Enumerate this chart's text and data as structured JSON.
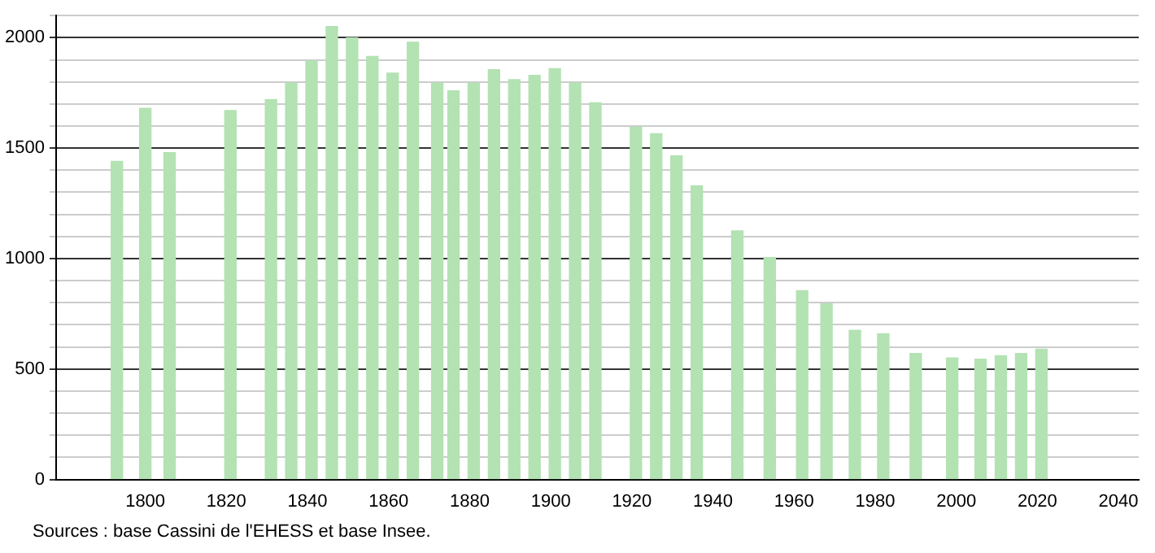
{
  "chart_data": {
    "type": "bar",
    "color": "#b3e2b3",
    "x": [
      1793,
      1800,
      1806,
      1821,
      1831,
      1836,
      1841,
      1846,
      1851,
      1856,
      1861,
      1866,
      1872,
      1876,
      1881,
      1886,
      1891,
      1896,
      1901,
      1906,
      1911,
      1921,
      1926,
      1931,
      1936,
      1946,
      1954,
      1962,
      1968,
      1975,
      1982,
      1990,
      1999,
      2006,
      2011,
      2016,
      2021
    ],
    "values": [
      1440,
      1680,
      1480,
      1670,
      1720,
      1795,
      1895,
      2050,
      2000,
      1915,
      1840,
      1980,
      1795,
      1760,
      1795,
      1855,
      1810,
      1830,
      1860,
      1795,
      1705,
      1595,
      1565,
      1465,
      1330,
      1125,
      1005,
      855,
      795,
      675,
      660,
      570,
      550,
      545,
      560,
      570,
      590
    ],
    "xlim": [
      1778,
      2045
    ],
    "xticks": [
      1800,
      1820,
      1840,
      1860,
      1880,
      1900,
      1920,
      1940,
      1960,
      1980,
      2000,
      2020,
      2040
    ],
    "ylim": [
      0,
      2100
    ],
    "yticks": [
      0,
      {
        "value": 100,
        "label": null
      },
      {
        "value": 200,
        "label": null
      },
      {
        "value": 300,
        "label": null
      },
      {
        "value": 400,
        "label": null
      },
      500,
      {
        "value": 600,
        "label": null
      },
      {
        "value": 700,
        "label": null
      },
      {
        "value": 800,
        "label": null
      },
      {
        "value": 900,
        "label": null
      },
      1000,
      {
        "value": 1100,
        "label": null
      },
      {
        "value": 1200,
        "label": null
      },
      {
        "value": 1300,
        "label": null
      },
      {
        "value": 1400,
        "label": null
      },
      1500,
      {
        "value": 1600,
        "label": null
      },
      {
        "value": 1700,
        "label": null
      },
      {
        "value": 1800,
        "label": null
      },
      {
        "value": 1900,
        "label": null
      },
      2000,
      {
        "value": 2100,
        "label": null
      }
    ],
    "grid": "y",
    "annotations": [
      "Sources : base Cassini de l'EHESS et base Insee."
    ]
  }
}
